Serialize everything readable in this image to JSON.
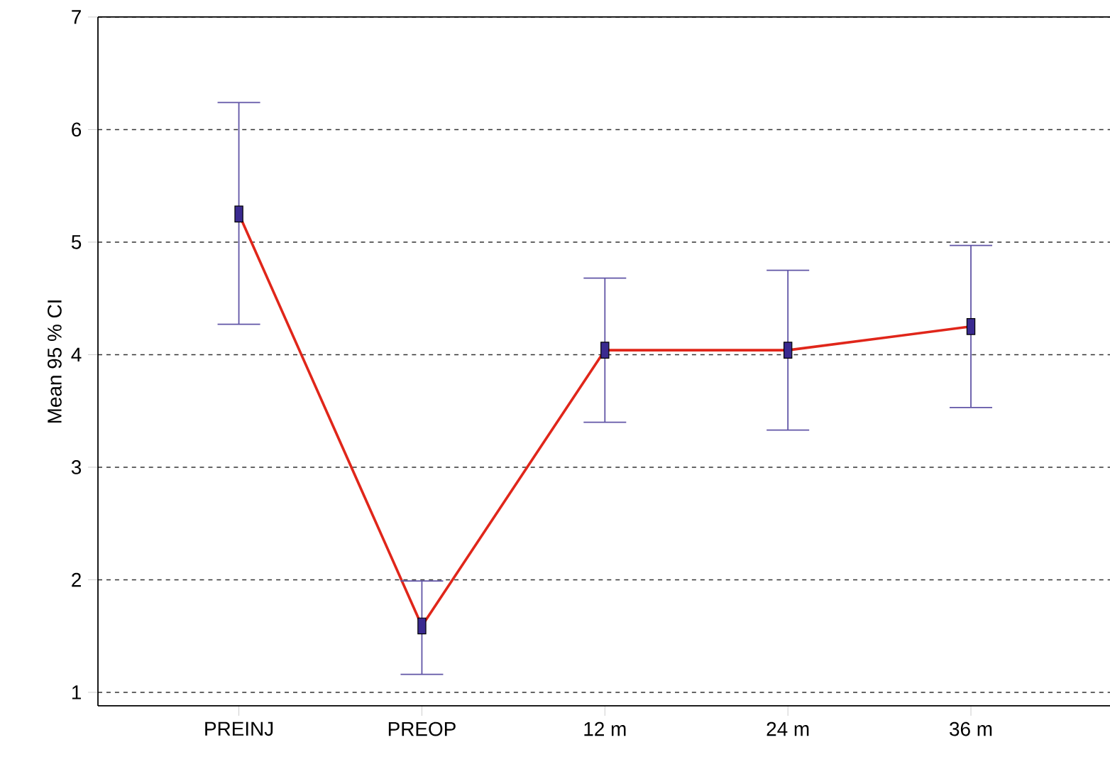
{
  "chart_data": {
    "type": "line",
    "ylabel": "Mean 95 % CI",
    "categories": [
      "PREINJ",
      "PREOP",
      "12 m",
      "24 m",
      "36 m"
    ],
    "series": [
      {
        "type": "scatter",
        "color": "#3a2a90",
        "marker": "square",
        "values": [
          5.25,
          1.59,
          4.04,
          4.04,
          4.25
        ],
        "errors": [
          [
            4.27,
            6.24
          ],
          [
            1.16,
            1.99
          ],
          [
            3.4,
            4.68
          ],
          [
            3.33,
            4.75
          ],
          [
            3.53,
            4.97
          ]
        ]
      },
      {
        "color": "#e0261a",
        "marker": "none",
        "line_style": "solid",
        "values": [
          5.25,
          1.59,
          4.04,
          4.04,
          4.25
        ]
      }
    ],
    "ylim": [
      0.88,
      7
    ],
    "yticks": [
      1,
      2,
      3,
      4,
      5,
      6,
      7
    ],
    "grid": "y"
  }
}
